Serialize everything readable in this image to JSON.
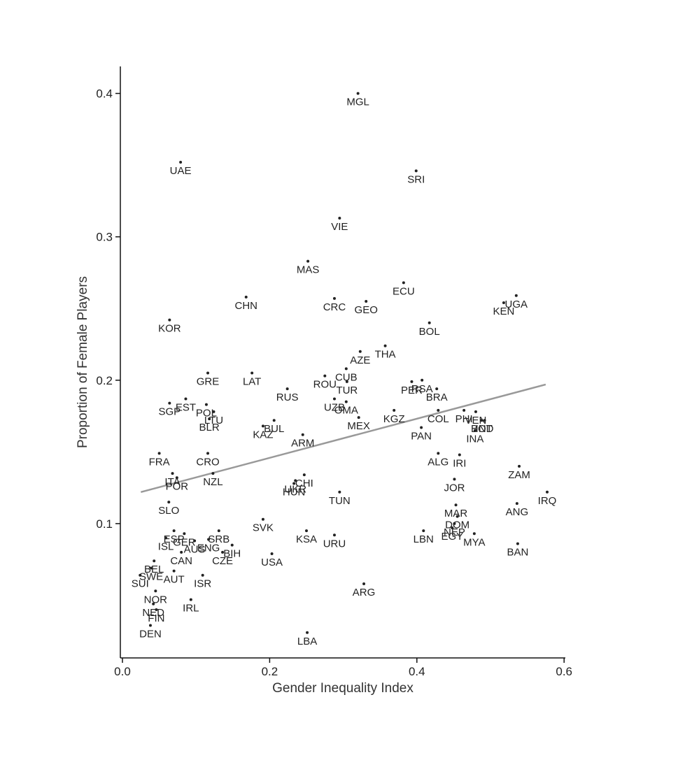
{
  "chart_data": {
    "type": "scatter",
    "title": "",
    "xlabel": "Gender Inequality Index",
    "ylabel": "Proportion of Female Players",
    "xlim": [
      0.0,
      0.6
    ],
    "ylim": [
      0.0,
      0.42
    ],
    "xticks": [
      "0.0",
      "0.2",
      "0.4",
      "0.6"
    ],
    "yticks": [
      "0.1",
      "0.2",
      "0.3",
      "0.4"
    ],
    "grid": false,
    "legend": "none",
    "trendline": {
      "x": [
        0.025,
        0.575
      ],
      "y": [
        0.122,
        0.197
      ],
      "color": "#999999"
    },
    "colors": {
      "points": "#222222",
      "trendline": "#999999",
      "axes": "#111111"
    },
    "points": [
      {
        "label": "MGL",
        "x": 0.32,
        "y": 0.4
      },
      {
        "label": "UAE",
        "x": 0.079,
        "y": 0.352
      },
      {
        "label": "SRI",
        "x": 0.399,
        "y": 0.346
      },
      {
        "label": "VIE",
        "x": 0.295,
        "y": 0.313
      },
      {
        "label": "MAS",
        "x": 0.252,
        "y": 0.283
      },
      {
        "label": "ECU",
        "x": 0.382,
        "y": 0.268
      },
      {
        "label": "CHN",
        "x": 0.168,
        "y": 0.258
      },
      {
        "label": "CRC",
        "x": 0.288,
        "y": 0.257
      },
      {
        "label": "GEO",
        "x": 0.331,
        "y": 0.255
      },
      {
        "label": "UGA",
        "x": 0.535,
        "y": 0.259
      },
      {
        "label": "KEN",
        "x": 0.518,
        "y": 0.254
      },
      {
        "label": "KOR",
        "x": 0.064,
        "y": 0.242
      },
      {
        "label": "BOL",
        "x": 0.417,
        "y": 0.24
      },
      {
        "label": "AZE",
        "x": 0.323,
        "y": 0.22
      },
      {
        "label": "THA",
        "x": 0.357,
        "y": 0.224
      },
      {
        "label": "GRE",
        "x": 0.116,
        "y": 0.205
      },
      {
        "label": "LAT",
        "x": 0.176,
        "y": 0.205
      },
      {
        "label": "ROU",
        "x": 0.275,
        "y": 0.203
      },
      {
        "label": "CUB",
        "x": 0.304,
        "y": 0.208
      },
      {
        "label": "RSA",
        "x": 0.407,
        "y": 0.2
      },
      {
        "label": "PER",
        "x": 0.393,
        "y": 0.199
      },
      {
        "label": "BRA",
        "x": 0.427,
        "y": 0.194
      },
      {
        "label": "RUS",
        "x": 0.224,
        "y": 0.194
      },
      {
        "label": "TUR",
        "x": 0.305,
        "y": 0.199
      },
      {
        "label": "UZB",
        "x": 0.288,
        "y": 0.187
      },
      {
        "label": "EST",
        "x": 0.086,
        "y": 0.187
      },
      {
        "label": "POL",
        "x": 0.114,
        "y": 0.183
      },
      {
        "label": "SGP",
        "x": 0.064,
        "y": 0.184
      },
      {
        "label": "LTU",
        "x": 0.124,
        "y": 0.178
      },
      {
        "label": "OMA",
        "x": 0.304,
        "y": 0.185
      },
      {
        "label": "KGZ",
        "x": 0.369,
        "y": 0.179
      },
      {
        "label": "COL",
        "x": 0.429,
        "y": 0.179
      },
      {
        "label": "PHI",
        "x": 0.464,
        "y": 0.179
      },
      {
        "label": "VEN",
        "x": 0.48,
        "y": 0.178
      },
      {
        "label": "BUL",
        "x": 0.206,
        "y": 0.172
      },
      {
        "label": "BOT",
        "x": 0.488,
        "y": 0.172
      },
      {
        "label": "IND",
        "x": 0.492,
        "y": 0.172
      },
      {
        "label": "BLR",
        "x": 0.118,
        "y": 0.173
      },
      {
        "label": "MEX",
        "x": 0.321,
        "y": 0.174
      },
      {
        "label": "KAZ",
        "x": 0.191,
        "y": 0.168
      },
      {
        "label": "PAN",
        "x": 0.406,
        "y": 0.167
      },
      {
        "label": "INA",
        "x": 0.479,
        "y": 0.165
      },
      {
        "label": "ARM",
        "x": 0.245,
        "y": 0.162
      },
      {
        "label": "FRA",
        "x": 0.05,
        "y": 0.149
      },
      {
        "label": "CRO",
        "x": 0.116,
        "y": 0.149
      },
      {
        "label": "ALG",
        "x": 0.429,
        "y": 0.149
      },
      {
        "label": "IRI",
        "x": 0.458,
        "y": 0.148
      },
      {
        "label": "ZAM",
        "x": 0.539,
        "y": 0.14
      },
      {
        "label": "CHI",
        "x": 0.247,
        "y": 0.134
      },
      {
        "label": "ITA",
        "x": 0.068,
        "y": 0.135
      },
      {
        "label": "POR",
        "x": 0.074,
        "y": 0.132
      },
      {
        "label": "NZL",
        "x": 0.123,
        "y": 0.135
      },
      {
        "label": "UKR",
        "x": 0.235,
        "y": 0.13
      },
      {
        "label": "JOR",
        "x": 0.451,
        "y": 0.131
      },
      {
        "label": "HUN",
        "x": 0.233,
        "y": 0.128
      },
      {
        "label": "IRQ",
        "x": 0.577,
        "y": 0.122
      },
      {
        "label": "TUN",
        "x": 0.295,
        "y": 0.122
      },
      {
        "label": "SLO",
        "x": 0.063,
        "y": 0.115
      },
      {
        "label": "MAR",
        "x": 0.453,
        "y": 0.113
      },
      {
        "label": "ANG",
        "x": 0.536,
        "y": 0.114
      },
      {
        "label": "DOM",
        "x": 0.455,
        "y": 0.105
      },
      {
        "label": "SVK",
        "x": 0.191,
        "y": 0.103
      },
      {
        "label": "ESP",
        "x": 0.07,
        "y": 0.095
      },
      {
        "label": "NEP",
        "x": 0.451,
        "y": 0.1
      },
      {
        "label": "SRB",
        "x": 0.131,
        "y": 0.095
      },
      {
        "label": "GER",
        "x": 0.084,
        "y": 0.093
      },
      {
        "label": "LBN",
        "x": 0.409,
        "y": 0.095
      },
      {
        "label": "KSA",
        "x": 0.25,
        "y": 0.095
      },
      {
        "label": "EGY",
        "x": 0.448,
        "y": 0.097
      },
      {
        "label": "MYA",
        "x": 0.478,
        "y": 0.093
      },
      {
        "label": "URU",
        "x": 0.288,
        "y": 0.092
      },
      {
        "label": "ISL",
        "x": 0.059,
        "y": 0.09
      },
      {
        "label": "ENG",
        "x": 0.117,
        "y": 0.089
      },
      {
        "label": "AUS",
        "x": 0.098,
        "y": 0.088
      },
      {
        "label": "BIH",
        "x": 0.149,
        "y": 0.085
      },
      {
        "label": "BAN",
        "x": 0.537,
        "y": 0.086
      },
      {
        "label": "USA",
        "x": 0.203,
        "y": 0.079
      },
      {
        "label": "BEL",
        "x": 0.043,
        "y": 0.074
      },
      {
        "label": "CAN",
        "x": 0.08,
        "y": 0.08
      },
      {
        "label": "CZE",
        "x": 0.136,
        "y": 0.08
      },
      {
        "label": "SWE",
        "x": 0.039,
        "y": 0.069
      },
      {
        "label": "AUT",
        "x": 0.07,
        "y": 0.067
      },
      {
        "label": "ISR",
        "x": 0.109,
        "y": 0.064
      },
      {
        "label": "SUI",
        "x": 0.024,
        "y": 0.064
      },
      {
        "label": "ARG",
        "x": 0.328,
        "y": 0.058
      },
      {
        "label": "NOR",
        "x": 0.045,
        "y": 0.053
      },
      {
        "label": "IRL",
        "x": 0.093,
        "y": 0.047
      },
      {
        "label": "NED",
        "x": 0.042,
        "y": 0.044
      },
      {
        "label": "FIN",
        "x": 0.046,
        "y": 0.04
      },
      {
        "label": "DEN",
        "x": 0.038,
        "y": 0.029
      },
      {
        "label": "LBA",
        "x": 0.251,
        "y": 0.024
      }
    ]
  }
}
